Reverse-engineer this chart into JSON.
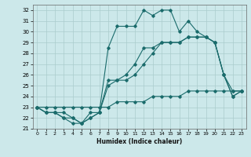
{
  "title": "",
  "xlabel": "Humidex (Indice chaleur)",
  "xlim": [
    -0.5,
    23.5
  ],
  "ylim": [
    21,
    32.5
  ],
  "yticks": [
    21,
    22,
    23,
    24,
    25,
    26,
    27,
    28,
    29,
    30,
    31,
    32
  ],
  "xticks": [
    0,
    1,
    2,
    3,
    4,
    5,
    6,
    7,
    8,
    9,
    10,
    11,
    12,
    13,
    14,
    15,
    16,
    17,
    18,
    19,
    20,
    21,
    22,
    23
  ],
  "bg_color": "#cce8ea",
  "grid_color": "#aacccc",
  "line_color": "#1a6b6b",
  "lines": [
    [
      23.0,
      22.5,
      22.5,
      22.0,
      21.5,
      21.5,
      22.0,
      22.5,
      28.5,
      30.5,
      30.5,
      30.5,
      32.0,
      31.5,
      32.0,
      32.0,
      30.0,
      31.0,
      30.0,
      29.5,
      29.0,
      26.0,
      24.0,
      24.5
    ],
    [
      23.0,
      22.5,
      22.5,
      22.5,
      22.0,
      21.5,
      22.5,
      22.5,
      25.0,
      25.5,
      25.5,
      26.0,
      27.0,
      28.0,
      29.0,
      29.0,
      29.0,
      29.5,
      29.5,
      29.5,
      29.0,
      26.0,
      24.5,
      24.5
    ],
    [
      23.0,
      23.0,
      23.0,
      23.0,
      23.0,
      23.0,
      23.0,
      23.0,
      23.0,
      23.5,
      23.5,
      23.5,
      23.5,
      24.0,
      24.0,
      24.0,
      24.0,
      24.5,
      24.5,
      24.5,
      24.5,
      24.5,
      24.5,
      24.5
    ],
    [
      23.0,
      22.5,
      22.5,
      22.0,
      22.0,
      21.5,
      22.0,
      22.5,
      25.5,
      25.5,
      26.0,
      27.0,
      28.5,
      28.5,
      29.0,
      29.0,
      29.0,
      29.5,
      29.5,
      29.5,
      29.0,
      26.0,
      24.0,
      24.5
    ]
  ]
}
